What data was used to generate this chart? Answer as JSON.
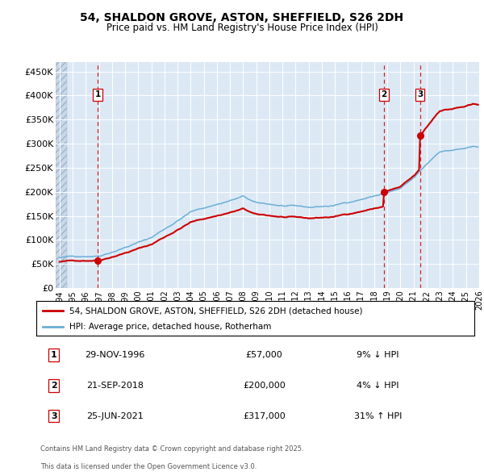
{
  "title_line1": "54, SHALDON GROVE, ASTON, SHEFFIELD, S26 2DH",
  "title_line2": "Price paid vs. HM Land Registry's House Price Index (HPI)",
  "legend_property": "54, SHALDON GROVE, ASTON, SHEFFIELD, S26 2DH (detached house)",
  "legend_hpi": "HPI: Average price, detached house, Rotherham",
  "sales": [
    {
      "label": "1",
      "date": "29-NOV-1996",
      "price": 57000,
      "note": "9% ↓ HPI"
    },
    {
      "label": "2",
      "date": "21-SEP-2018",
      "price": 200000,
      "note": "4% ↓ HPI"
    },
    {
      "label": "3",
      "date": "25-JUN-2021",
      "price": 317000,
      "note": "31% ↑ HPI"
    }
  ],
  "footer_line1": "Contains HM Land Registry data © Crown copyright and database right 2025.",
  "footer_line2": "This data is licensed under the Open Government Licence v3.0.",
  "hpi_color": "#6baed6",
  "property_color": "#cc0000",
  "sale_marker_color": "#cc0000",
  "dashed_line_color": "#cc0000",
  "background_color": "#dce9f5",
  "grid_color": "#ffffff",
  "ylim": [
    0,
    470000
  ],
  "ylabel_ticks": [
    0,
    50000,
    100000,
    150000,
    200000,
    250000,
    300000,
    350000,
    400000,
    450000
  ],
  "start_year": 1994,
  "end_year": 2025,
  "sale_date_decimal": [
    1996.91,
    2018.72,
    2021.48
  ],
  "sale_prices": [
    57000,
    200000,
    317000
  ]
}
